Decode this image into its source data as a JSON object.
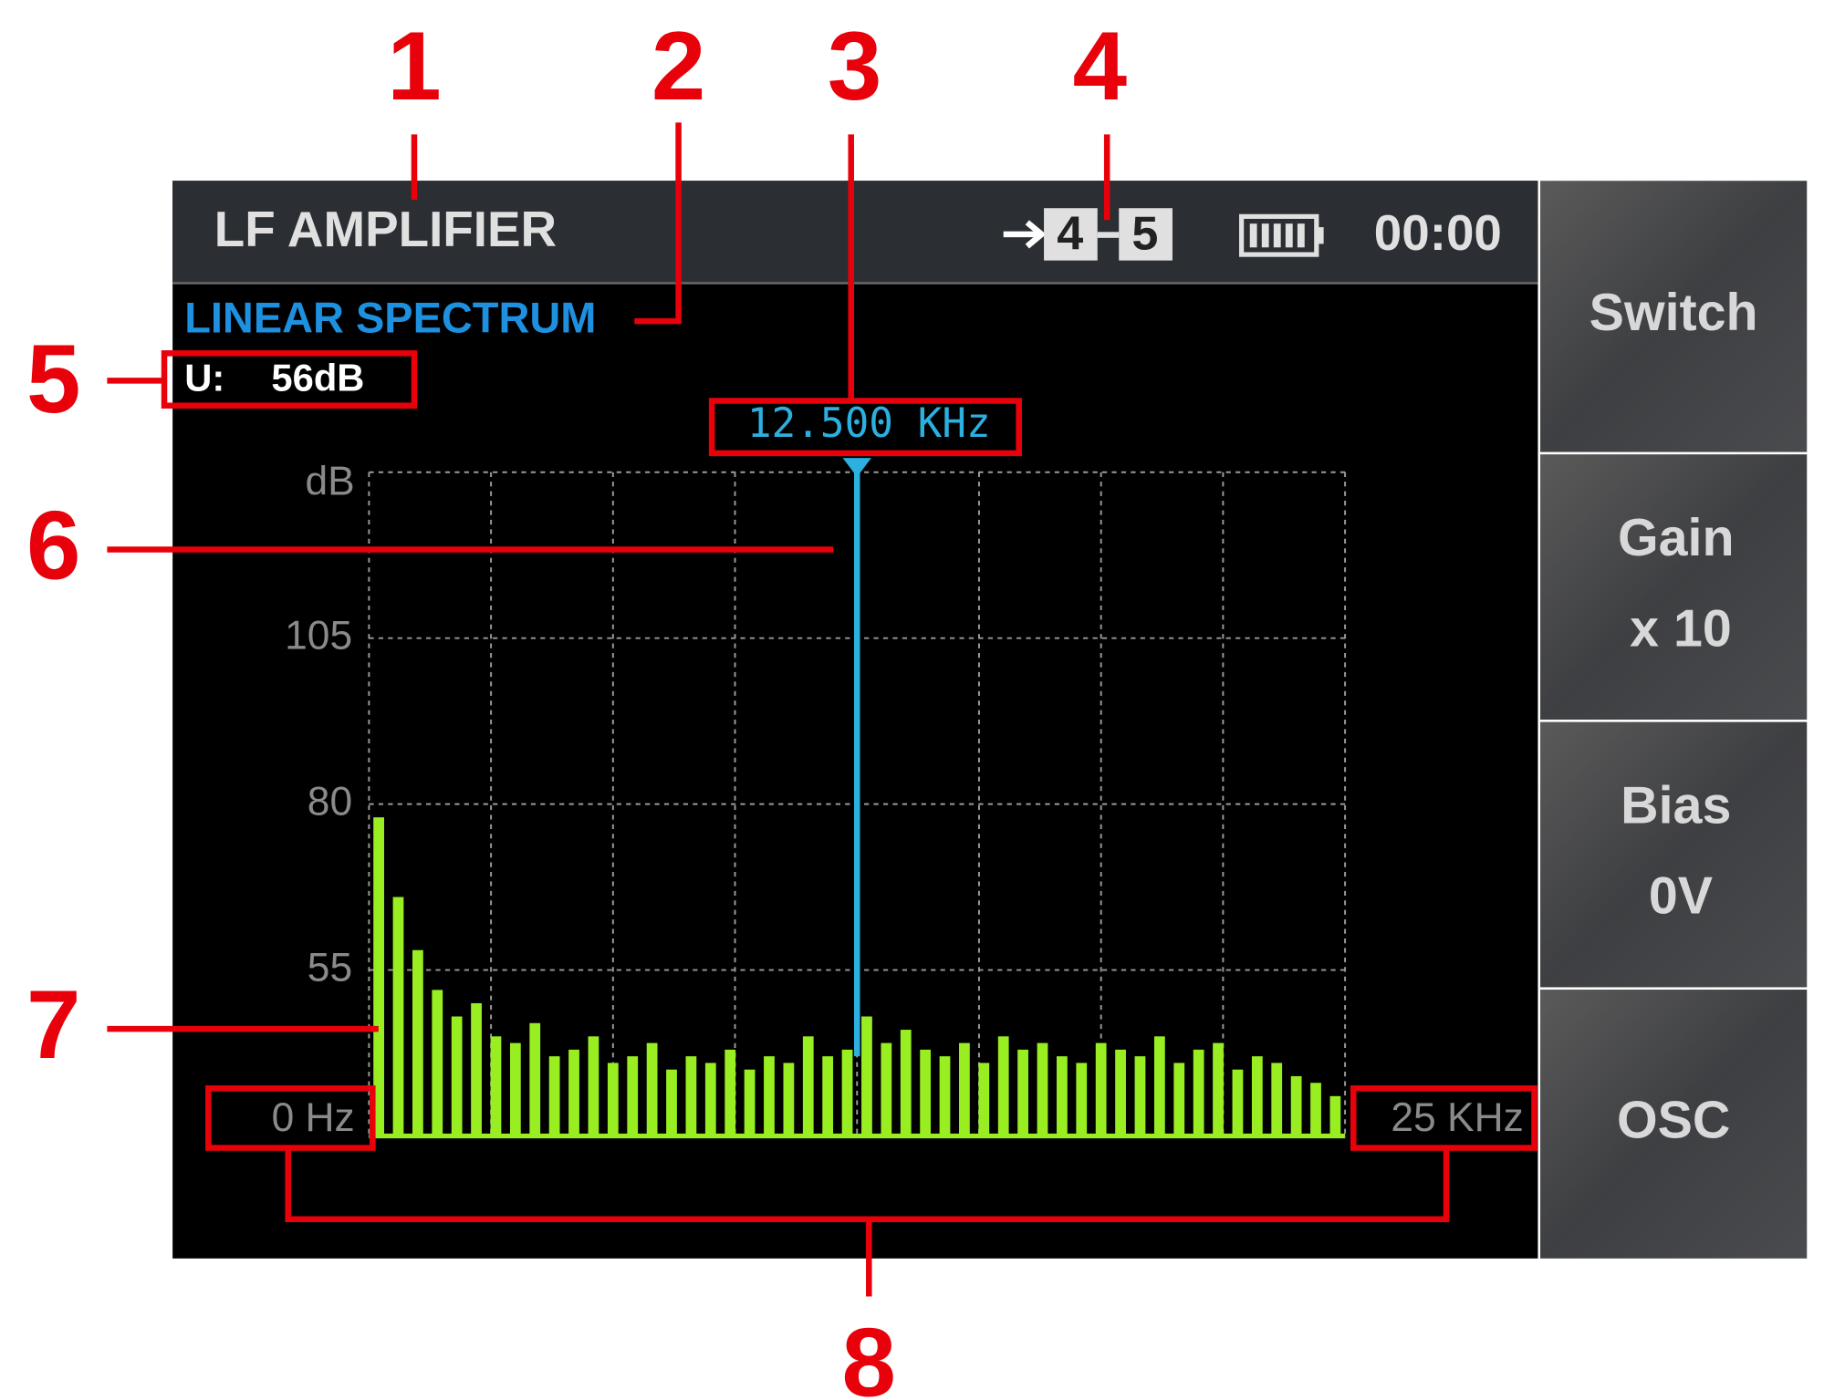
{
  "header": {
    "title": "LF AMPLIFIER",
    "range_from": "4",
    "range_to": "5",
    "time": "00:00"
  },
  "mode": "LINEAR SPECTRUM",
  "level": {
    "label": "U:",
    "value": "56dB"
  },
  "marker": {
    "label": "12.500 KHz",
    "value": 12.5
  },
  "chart_data": {
    "type": "bar",
    "y_unit": "dB",
    "ylim": [
      30,
      130
    ],
    "yticks": [
      55,
      80,
      105
    ],
    "xlim": [
      0,
      25
    ],
    "xticks": [
      {
        "value": 0,
        "label": "0 Hz"
      },
      {
        "value": 25,
        "label": "25 KHz"
      }
    ],
    "x": [
      0.25,
      0.75,
      1.25,
      1.75,
      2.25,
      2.75,
      3.25,
      3.75,
      4.25,
      4.75,
      5.25,
      5.75,
      6.25,
      6.75,
      7.25,
      7.75,
      8.25,
      8.75,
      9.25,
      9.75,
      10.25,
      10.75,
      11.25,
      11.75,
      12.25,
      12.75,
      13.25,
      13.75,
      14.25,
      14.75,
      15.25,
      15.75,
      16.25,
      16.75,
      17.25,
      17.75,
      18.25,
      18.75,
      19.25,
      19.75,
      20.25,
      20.75,
      21.25,
      21.75,
      22.25,
      22.75,
      23.25,
      23.75,
      24.25,
      24.75
    ],
    "values": [
      78,
      66,
      58,
      52,
      48,
      50,
      45,
      44,
      47,
      42,
      43,
      45,
      41,
      42,
      44,
      40,
      42,
      41,
      43,
      40,
      42,
      41,
      45,
      42,
      43,
      48,
      44,
      46,
      43,
      42,
      44,
      41,
      45,
      43,
      44,
      42,
      41,
      44,
      43,
      42,
      45,
      41,
      43,
      44,
      40,
      42,
      41,
      39,
      38,
      36
    ],
    "color": "#99ee22"
  },
  "buttons": [
    {
      "label": "Switch"
    },
    {
      "label": "Gain",
      "value": "x 10"
    },
    {
      "label": "Bias",
      "value": "0V"
    },
    {
      "label": "OSC"
    }
  ],
  "callouts": [
    "1",
    "2",
    "3",
    "4",
    "5",
    "6",
    "7",
    "8"
  ]
}
